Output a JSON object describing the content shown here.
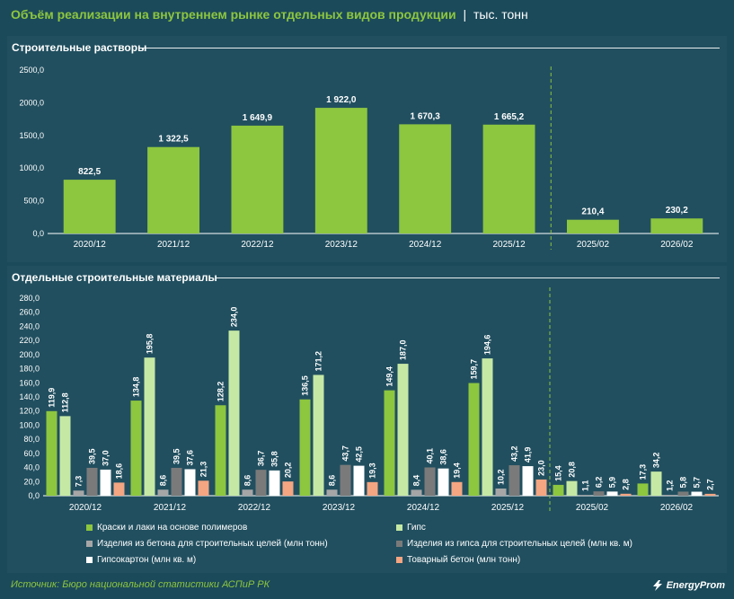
{
  "header": {
    "title": "Объём реализации на внутреннем рынке отдельных видов продукции",
    "separator": "|",
    "unit": "тыс. тонн"
  },
  "chart_data": [
    {
      "type": "bar",
      "title": "Строительные растворы",
      "categories": [
        "2020/12",
        "2021/12",
        "2022/12",
        "2023/12",
        "2024/12",
        "2025/12",
        "2025/02",
        "2026/02"
      ],
      "values": [
        822.5,
        1322.5,
        1649.9,
        1922.0,
        1670.3,
        1665.2,
        210.4,
        230.2
      ],
      "value_labels": [
        "822,5",
        "1 322,5",
        "1 649,9",
        "1 922,0",
        "1 670,3",
        "1 665,2",
        "210,4",
        "230,2"
      ],
      "y_ticks": [
        "0,0",
        "500,0",
        "1000,0",
        "1500,0",
        "2000,0",
        "2500,0"
      ],
      "ylim": [
        0,
        2500
      ],
      "divider_after_index": 5,
      "color": "#8dc63f"
    },
    {
      "type": "bar",
      "title": "Отдельные строительные материалы",
      "categories": [
        "2020/12",
        "2021/12",
        "2022/12",
        "2023/12",
        "2024/12",
        "2025/12",
        "2025/02",
        "2026/02"
      ],
      "y_ticks": [
        "0,0",
        "20,0",
        "40,0",
        "60,0",
        "80,0",
        "100,0",
        "120,0",
        "140,0",
        "160,0",
        "180,0",
        "200,0",
        "220,0",
        "240,0",
        "260,0",
        "280,0"
      ],
      "ylim": [
        0,
        280
      ],
      "divider_after_index": 5,
      "series": [
        {
          "name": "Краски и лаки на основе полимеров",
          "color": "#8dc63f",
          "values": [
            119.9,
            134.8,
            128.2,
            136.5,
            149.4,
            159.7,
            15.4,
            17.3
          ],
          "value_labels": [
            "119,9",
            "134,8",
            "128,2",
            "136,5",
            "149,4",
            "159,7",
            "15,4",
            "17,3"
          ]
        },
        {
          "name": "Гипс",
          "color": "#c5e8a5",
          "values": [
            112.8,
            195.8,
            234.0,
            171.2,
            187.0,
            194.6,
            20.8,
            34.2
          ],
          "value_labels": [
            "112,8",
            "195,8",
            "234,0",
            "171,2",
            "187,0",
            "194,6",
            "20,8",
            "34,2"
          ]
        },
        {
          "name": "Изделия из бетона для строительных целей (млн тонн)",
          "color": "#a6a6a6",
          "values": [
            7.3,
            8.6,
            8.6,
            8.6,
            8.4,
            10.2,
            1.1,
            1.2
          ],
          "value_labels": [
            "7,3",
            "8,6",
            "8,6",
            "8,6",
            "8,4",
            "10,2",
            "1,1",
            "1,2"
          ]
        },
        {
          "name": "Изделия из гипса для строительных целей (млн кв. м)",
          "color": "#7a7a7a",
          "values": [
            39.5,
            39.5,
            36.7,
            43.7,
            40.1,
            43.2,
            6.2,
            5.8
          ],
          "value_labels": [
            "39,5",
            "39,5",
            "36,7",
            "43,7",
            "40,1",
            "43,2",
            "6,2",
            "5,8"
          ]
        },
        {
          "name": "Гипсокартон (млн кв. м)",
          "color": "#ffffff",
          "values": [
            37.0,
            37.6,
            35.8,
            42.5,
            38.6,
            41.9,
            5.9,
            5.7
          ],
          "value_labels": [
            "37,0",
            "37,6",
            "35,8",
            "42,5",
            "38,6",
            "41,9",
            "5,9",
            "5,7"
          ]
        },
        {
          "name": "Товарный бетон (млн тонн)",
          "color": "#f4a582",
          "values": [
            18.6,
            21.3,
            20.2,
            19.3,
            19.4,
            23.0,
            2.8,
            2.7
          ],
          "value_labels": [
            "18,6",
            "21,3",
            "20,2",
            "19,3",
            "19,4",
            "23,0",
            "2,8",
            "2,7"
          ]
        }
      ]
    }
  ],
  "footer": {
    "source": "Источник: Бюро национальной статистики АСПиР РК",
    "logo": "EnergyProm"
  }
}
